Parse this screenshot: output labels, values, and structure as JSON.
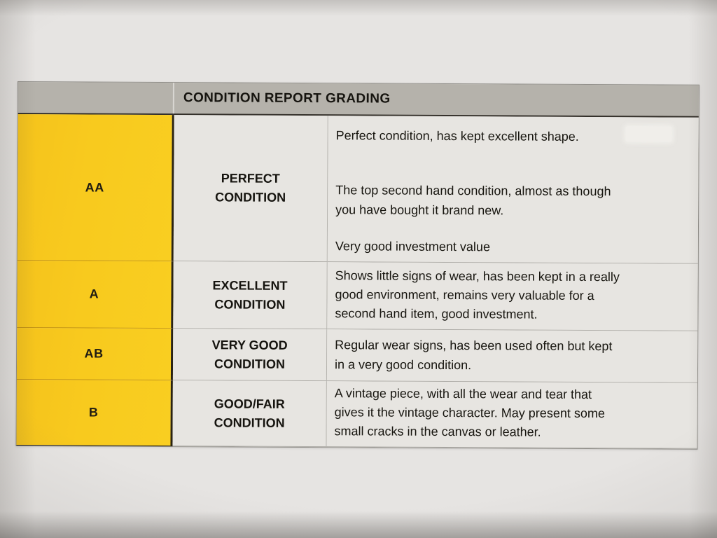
{
  "header": {
    "title": "CONDITION REPORT GRADING"
  },
  "colors": {
    "grade_column_yellow": "#f8ca1e",
    "header_gray": "#b5b2ab",
    "paper": "#e6e4e2",
    "cell_background": "#e7e5e1",
    "text": "#17150f"
  },
  "rows": [
    {
      "grade": "AA",
      "label": "PERFECT\nCONDITION",
      "description": [
        "Perfect condition, has kept excellent shape.",
        "The top second hand condition, almost as though\nyou have bought it brand new.",
        "Very good investment value"
      ]
    },
    {
      "grade": "A",
      "label": "EXCELLENT\nCONDITION",
      "description": [
        "Shows little signs of wear, has been kept in a really\ngood environment, remains very valuable for a\nsecond hand item, good investment."
      ]
    },
    {
      "grade": "AB",
      "label": "VERY GOOD\nCONDITION",
      "description": [
        "Regular wear signs, has been used often but kept\nin a very good condition."
      ]
    },
    {
      "grade": "B",
      "label": "GOOD/FAIR\nCONDITION",
      "description": [
        "A vintage piece, with all the wear and tear that\ngives it the vintage character. May present some\nsmall cracks in the canvas or leather."
      ]
    }
  ]
}
